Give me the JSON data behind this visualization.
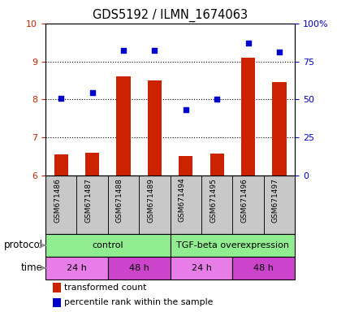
{
  "title": "GDS5192 / ILMN_1674063",
  "samples": [
    "GSM671486",
    "GSM671487",
    "GSM671488",
    "GSM671489",
    "GSM671494",
    "GSM671495",
    "GSM671496",
    "GSM671497"
  ],
  "bar_values": [
    6.55,
    6.6,
    8.6,
    8.5,
    6.5,
    6.57,
    9.1,
    8.45
  ],
  "scatter_values": [
    8.02,
    8.17,
    9.28,
    9.28,
    7.73,
    8.0,
    9.48,
    9.25
  ],
  "ylim_left": [
    6,
    10
  ],
  "yticks_left": [
    6,
    7,
    8,
    9,
    10
  ],
  "yticks_right_vals": [
    0,
    25,
    50,
    75,
    100
  ],
  "yticks_right_labels": [
    "0",
    "25",
    "50",
    "75",
    "100%"
  ],
  "bar_color": "#cc2200",
  "scatter_color": "#0000cc",
  "sample_bg_color": "#c8c8c8",
  "protocol_color": "#90ee90",
  "time_24_color": "#e87de8",
  "time_48_color": "#cc44cc",
  "left_axis_color": "#cc2200",
  "right_axis_color": "#0000cc",
  "proto_spans": [
    {
      "label": "control",
      "start": 0,
      "end": 4
    },
    {
      "label": "TGF-beta overexpression",
      "start": 4,
      "end": 8
    }
  ],
  "time_spans": [
    {
      "label": "24 h",
      "start": 0,
      "end": 2,
      "type": "24"
    },
    {
      "label": "48 h",
      "start": 2,
      "end": 4,
      "type": "48"
    },
    {
      "label": "24 h",
      "start": 4,
      "end": 6,
      "type": "24"
    },
    {
      "label": "48 h",
      "start": 6,
      "end": 8,
      "type": "48"
    }
  ],
  "protocol_label": "protocol",
  "time_label": "time",
  "legend_bar_label": "transformed count",
  "legend_scatter_label": "percentile rank within the sample"
}
